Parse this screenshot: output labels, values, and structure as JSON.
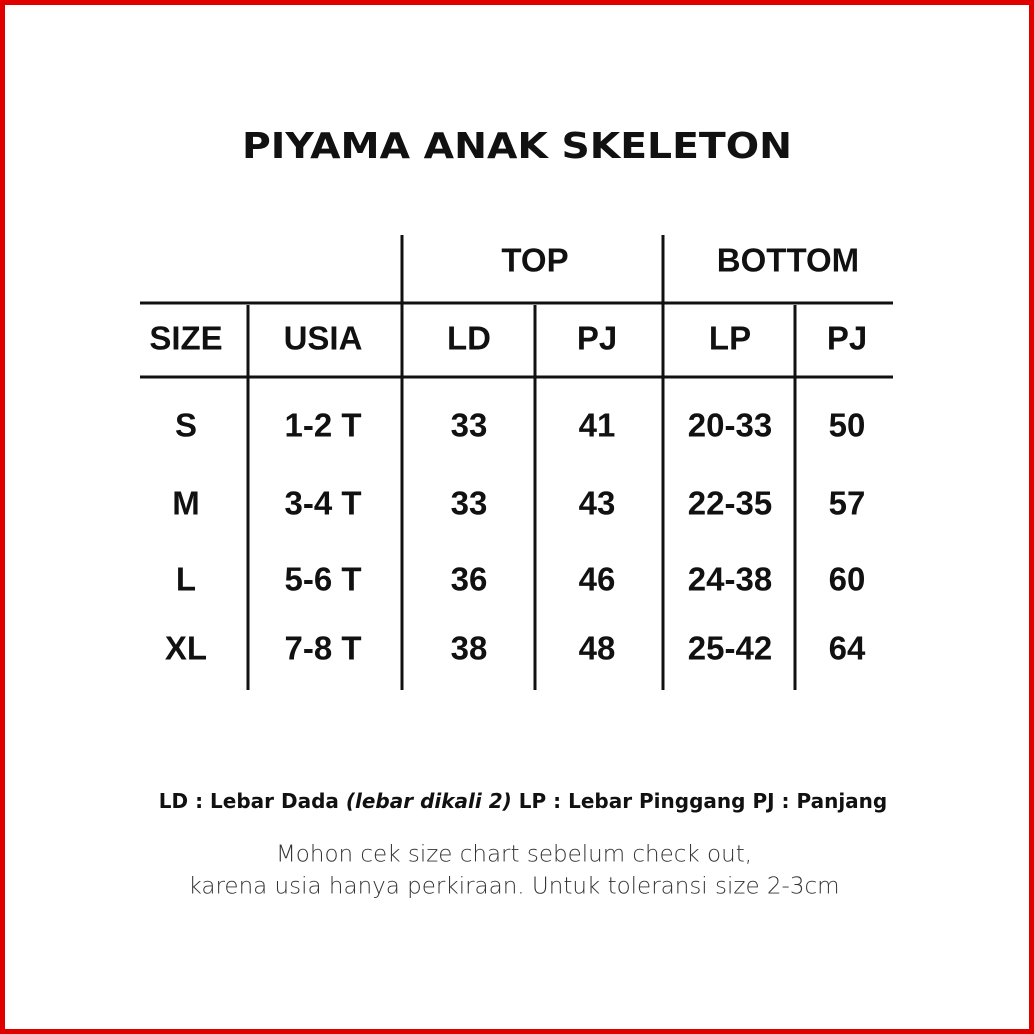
{
  "title": "PIYAMA ANAK SKELETON",
  "table": {
    "groups": [
      "TOP",
      "BOTTOM"
    ],
    "columns": [
      "SIZE",
      "USIA",
      "LD",
      "PJ",
      "LP",
      "PJ"
    ],
    "rows": [
      [
        "S",
        "1-2 T",
        "33",
        "41",
        "20-33",
        "50"
      ],
      [
        "M",
        "3-4 T",
        "33",
        "43",
        "22-35",
        "57"
      ],
      [
        "L",
        "5-6 T",
        "36",
        "46",
        "24-38",
        "60"
      ],
      [
        "XL",
        "7-8 T",
        "38",
        "48",
        "25-42",
        "64"
      ]
    ]
  },
  "legend": {
    "ld": "LD : Lebar Dada",
    "ld_note": "(lebar dikali 2)",
    "lp": "LP : Lebar Pinggang",
    "pj": "PJ : Panjang"
  },
  "note": [
    "Mohon cek size chart sebelum check out,",
    "karena usia hanya perkiraan. Untuk toleransi size 2-3cm"
  ]
}
